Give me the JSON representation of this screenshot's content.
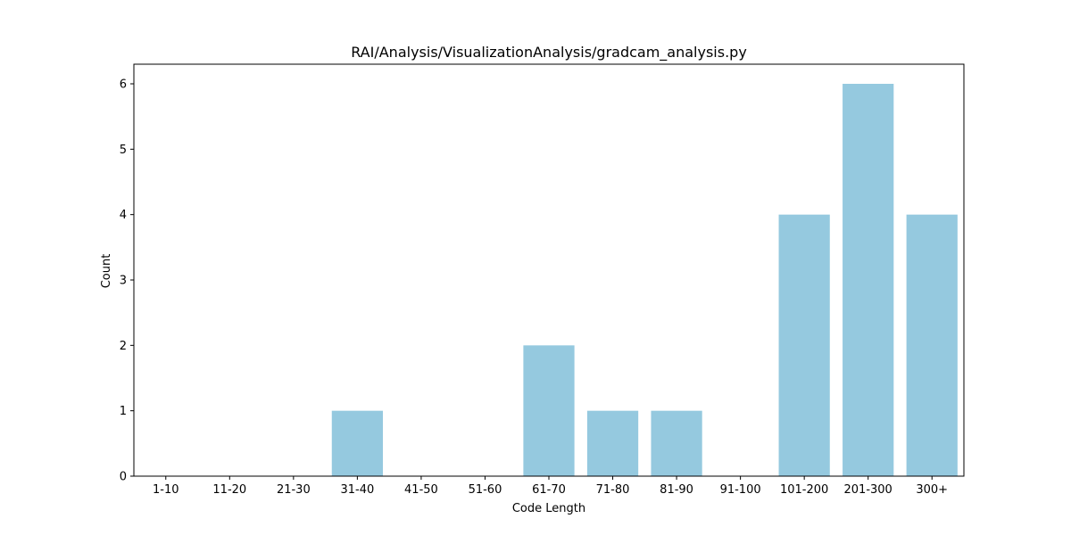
{
  "chart_data": {
    "type": "bar",
    "title": "RAI/Analysis/VisualizationAnalysis/gradcam_analysis.py",
    "xlabel": "Code Length",
    "ylabel": "Count",
    "categories": [
      "1-10",
      "11-20",
      "21-30",
      "31-40",
      "41-50",
      "51-60",
      "61-70",
      "71-80",
      "81-90",
      "91-100",
      "101-200",
      "201-300",
      "300+"
    ],
    "values": [
      0,
      0,
      0,
      1,
      0,
      0,
      2,
      1,
      1,
      0,
      4,
      6,
      4
    ],
    "ylim": [
      0,
      6.3
    ],
    "yticks": [
      "0",
      "1",
      "2",
      "3",
      "4",
      "5",
      "6"
    ],
    "bar_color": "#95c9df",
    "grid": false,
    "legend": "none"
  }
}
